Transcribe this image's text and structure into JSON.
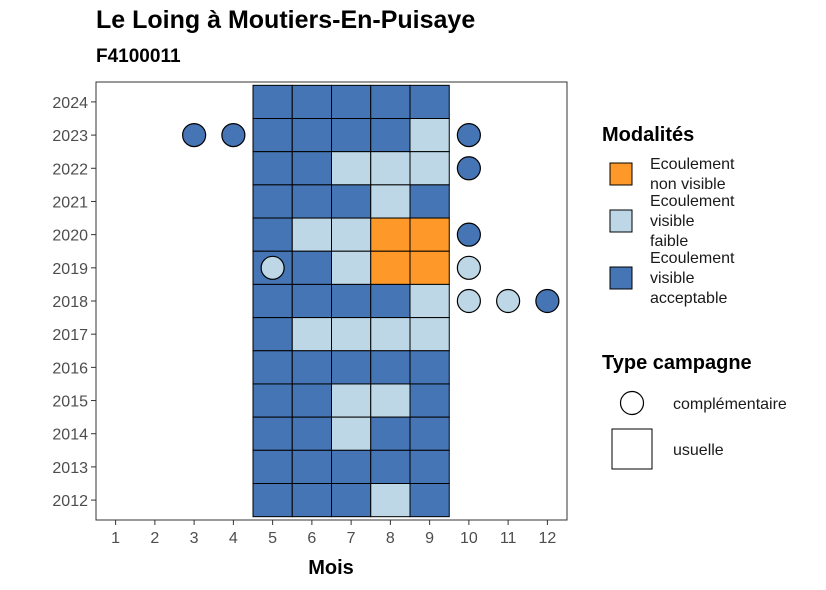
{
  "chart_data": {
    "type": "heatmap",
    "title": "Le Loing à Moutiers-En-Puisaye",
    "subtitle": "F4100011",
    "xlabel": "Mois",
    "ylabel": "",
    "x_ticks": [
      "1",
      "2",
      "3",
      "4",
      "5",
      "6",
      "7",
      "8",
      "9",
      "10",
      "11",
      "12"
    ],
    "y_ticks": [
      "2012",
      "2013",
      "2014",
      "2015",
      "2016",
      "2017",
      "2018",
      "2019",
      "2020",
      "2021",
      "2022",
      "2023",
      "2024"
    ],
    "xlim": [
      0.5,
      12.5
    ],
    "ylim": [
      2011.4,
      2024.6
    ],
    "grid": false,
    "legend_placement": "right",
    "categories": {
      "non_visible": {
        "label": "Ecoulement non visible",
        "color": "#FE9929"
      },
      "faible": {
        "label": "Ecoulement visible faible",
        "color": "#BDD7E7"
      },
      "acceptable": {
        "label": "Ecoulement visible acceptable",
        "color": "#4575B4"
      }
    },
    "series": [
      {
        "name": "usuelle",
        "shape": "square",
        "points": [
          {
            "year": 2024,
            "month": 5,
            "cat": "acceptable"
          },
          {
            "year": 2024,
            "month": 6,
            "cat": "acceptable"
          },
          {
            "year": 2024,
            "month": 7,
            "cat": "acceptable"
          },
          {
            "year": 2024,
            "month": 8,
            "cat": "acceptable"
          },
          {
            "year": 2024,
            "month": 9,
            "cat": "acceptable"
          },
          {
            "year": 2023,
            "month": 5,
            "cat": "acceptable"
          },
          {
            "year": 2023,
            "month": 6,
            "cat": "acceptable"
          },
          {
            "year": 2023,
            "month": 7,
            "cat": "acceptable"
          },
          {
            "year": 2023,
            "month": 8,
            "cat": "acceptable"
          },
          {
            "year": 2023,
            "month": 9,
            "cat": "faible"
          },
          {
            "year": 2022,
            "month": 5,
            "cat": "acceptable"
          },
          {
            "year": 2022,
            "month": 6,
            "cat": "acceptable"
          },
          {
            "year": 2022,
            "month": 7,
            "cat": "faible"
          },
          {
            "year": 2022,
            "month": 8,
            "cat": "faible"
          },
          {
            "year": 2022,
            "month": 9,
            "cat": "faible"
          },
          {
            "year": 2021,
            "month": 5,
            "cat": "acceptable"
          },
          {
            "year": 2021,
            "month": 6,
            "cat": "acceptable"
          },
          {
            "year": 2021,
            "month": 7,
            "cat": "acceptable"
          },
          {
            "year": 2021,
            "month": 8,
            "cat": "faible"
          },
          {
            "year": 2021,
            "month": 9,
            "cat": "acceptable"
          },
          {
            "year": 2020,
            "month": 5,
            "cat": "acceptable"
          },
          {
            "year": 2020,
            "month": 6,
            "cat": "faible"
          },
          {
            "year": 2020,
            "month": 7,
            "cat": "faible"
          },
          {
            "year": 2020,
            "month": 8,
            "cat": "non_visible"
          },
          {
            "year": 2020,
            "month": 9,
            "cat": "non_visible"
          },
          {
            "year": 2019,
            "month": 5,
            "cat": "acceptable"
          },
          {
            "year": 2019,
            "month": 6,
            "cat": "acceptable"
          },
          {
            "year": 2019,
            "month": 7,
            "cat": "faible"
          },
          {
            "year": 2019,
            "month": 8,
            "cat": "non_visible"
          },
          {
            "year": 2019,
            "month": 9,
            "cat": "non_visible"
          },
          {
            "year": 2018,
            "month": 5,
            "cat": "acceptable"
          },
          {
            "year": 2018,
            "month": 6,
            "cat": "acceptable"
          },
          {
            "year": 2018,
            "month": 7,
            "cat": "acceptable"
          },
          {
            "year": 2018,
            "month": 8,
            "cat": "acceptable"
          },
          {
            "year": 2018,
            "month": 9,
            "cat": "faible"
          },
          {
            "year": 2017,
            "month": 5,
            "cat": "acceptable"
          },
          {
            "year": 2017,
            "month": 6,
            "cat": "faible"
          },
          {
            "year": 2017,
            "month": 7,
            "cat": "faible"
          },
          {
            "year": 2017,
            "month": 8,
            "cat": "faible"
          },
          {
            "year": 2017,
            "month": 9,
            "cat": "faible"
          },
          {
            "year": 2016,
            "month": 5,
            "cat": "acceptable"
          },
          {
            "year": 2016,
            "month": 6,
            "cat": "acceptable"
          },
          {
            "year": 2016,
            "month": 7,
            "cat": "acceptable"
          },
          {
            "year": 2016,
            "month": 8,
            "cat": "acceptable"
          },
          {
            "year": 2016,
            "month": 9,
            "cat": "acceptable"
          },
          {
            "year": 2015,
            "month": 5,
            "cat": "acceptable"
          },
          {
            "year": 2015,
            "month": 6,
            "cat": "acceptable"
          },
          {
            "year": 2015,
            "month": 7,
            "cat": "faible"
          },
          {
            "year": 2015,
            "month": 8,
            "cat": "faible"
          },
          {
            "year": 2015,
            "month": 9,
            "cat": "acceptable"
          },
          {
            "year": 2014,
            "month": 5,
            "cat": "acceptable"
          },
          {
            "year": 2014,
            "month": 6,
            "cat": "acceptable"
          },
          {
            "year": 2014,
            "month": 7,
            "cat": "faible"
          },
          {
            "year": 2014,
            "month": 8,
            "cat": "acceptable"
          },
          {
            "year": 2014,
            "month": 9,
            "cat": "acceptable"
          },
          {
            "year": 2013,
            "month": 5,
            "cat": "acceptable"
          },
          {
            "year": 2013,
            "month": 6,
            "cat": "acceptable"
          },
          {
            "year": 2013,
            "month": 7,
            "cat": "acceptable"
          },
          {
            "year": 2013,
            "month": 8,
            "cat": "acceptable"
          },
          {
            "year": 2013,
            "month": 9,
            "cat": "acceptable"
          },
          {
            "year": 2012,
            "month": 5,
            "cat": "acceptable"
          },
          {
            "year": 2012,
            "month": 6,
            "cat": "acceptable"
          },
          {
            "year": 2012,
            "month": 7,
            "cat": "acceptable"
          },
          {
            "year": 2012,
            "month": 8,
            "cat": "faible"
          },
          {
            "year": 2012,
            "month": 9,
            "cat": "acceptable"
          }
        ]
      },
      {
        "name": "complémentaire",
        "shape": "circle",
        "points": [
          {
            "year": 2023,
            "month": 3,
            "cat": "acceptable"
          },
          {
            "year": 2023,
            "month": 4,
            "cat": "acceptable"
          },
          {
            "year": 2023,
            "month": 10,
            "cat": "acceptable"
          },
          {
            "year": 2022,
            "month": 10,
            "cat": "acceptable"
          },
          {
            "year": 2020,
            "month": 10,
            "cat": "acceptable"
          },
          {
            "year": 2019,
            "month": 5,
            "cat": "faible"
          },
          {
            "year": 2019,
            "month": 10,
            "cat": "faible"
          },
          {
            "year": 2018,
            "month": 10,
            "cat": "faible"
          },
          {
            "year": 2018,
            "month": 11,
            "cat": "faible"
          },
          {
            "year": 2018,
            "month": 12,
            "cat": "acceptable"
          }
        ]
      }
    ],
    "legend": {
      "color_title": "Modalités",
      "color_entries": [
        {
          "key": "non_visible",
          "lines": [
            "Ecoulement",
            "non visible"
          ]
        },
        {
          "key": "faible",
          "lines": [
            "Ecoulement",
            "visible",
            "faible"
          ]
        },
        {
          "key": "acceptable",
          "lines": [
            "Ecoulement",
            "visible",
            "acceptable"
          ]
        }
      ],
      "shape_title": "Type campagne",
      "shape_entries": [
        {
          "shape": "circle",
          "label": "complémentaire"
        },
        {
          "shape": "square",
          "label": "usuelle"
        }
      ]
    }
  }
}
